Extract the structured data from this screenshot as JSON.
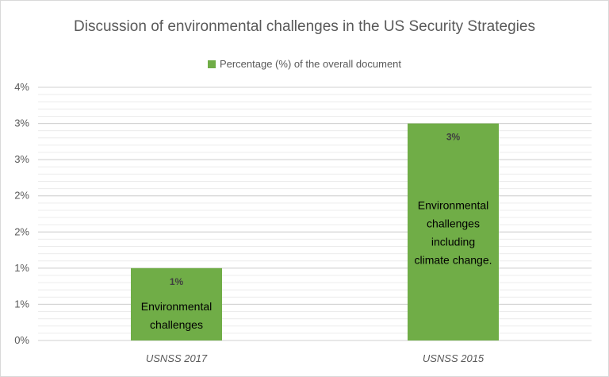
{
  "chart_data": {
    "type": "bar",
    "title": "Discussion of environmental challenges in the US Security Strategies",
    "categories": [
      "USNSS 2017",
      "USNSS 2015"
    ],
    "series": [
      {
        "name": "Percentage (%) of the overall document",
        "values": [
          1,
          3
        ],
        "color": "#70ad47"
      }
    ],
    "data_labels": [
      "1%",
      "3%"
    ],
    "y_tick_labels": [
      "0%",
      "1%",
      "1%",
      "2%",
      "2%",
      "3%",
      "3%",
      "4%"
    ],
    "ylim": [
      0,
      3.5
    ],
    "grid": true,
    "legend_position": "top",
    "annotations": [
      [
        "Environmental",
        "challenges"
      ],
      [
        "Environmental",
        "challenges",
        "including",
        "climate change."
      ]
    ]
  }
}
